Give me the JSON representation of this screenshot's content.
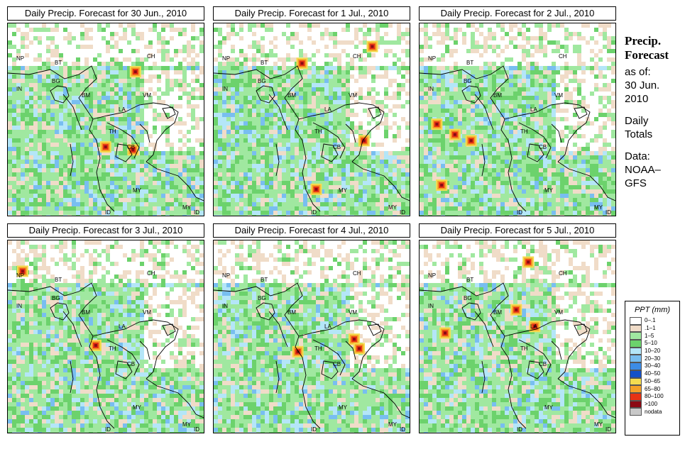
{
  "panels": [
    {
      "title": "Daily Precip. Forecast for  30 Jun., 2010"
    },
    {
      "title": "Daily Precip. Forecast for  1 Jul., 2010"
    },
    {
      "title": "Daily Precip. Forecast for  2 Jul., 2010"
    },
    {
      "title": "Daily Precip. Forecast for  3 Jul., 2010"
    },
    {
      "title": "Daily Precip. Forecast for  4 Jul., 2010"
    },
    {
      "title": "Daily Precip. Forecast for  5 Jul., 2010"
    }
  ],
  "country_labels": [
    "NP",
    "BT",
    "BG",
    "IN",
    "CH",
    "BM",
    "VM",
    "LA",
    "TH",
    "CB",
    "MY",
    "ID"
  ],
  "side": {
    "title1": "Precip.",
    "title2": "Forecast",
    "asof": "as of:",
    "date1": "30 Jun.",
    "date2": "2010",
    "daily1": "Daily",
    "daily2": "Totals",
    "data1": "Data:",
    "data2": "NOAA–",
    "data3": "GFS"
  },
  "legend": {
    "title": "PPT (mm)",
    "items": [
      {
        "label": "0–.1",
        "color": "#ffffff"
      },
      {
        "label": ".1–1",
        "color": "#f0dcc8"
      },
      {
        "label": "1–5",
        "color": "#a0e8a0"
      },
      {
        "label": "5–10",
        "color": "#6cd26c"
      },
      {
        "label": "10–20",
        "color": "#b4e6f8"
      },
      {
        "label": "20–30",
        "color": "#78bef0"
      },
      {
        "label": "30–40",
        "color": "#3c8ce6"
      },
      {
        "label": "40–50",
        "color": "#1450c8"
      },
      {
        "label": "50–65",
        "color": "#f5dc50"
      },
      {
        "label": "65–80",
        "color": "#f5a028"
      },
      {
        "label": "80–100",
        "color": "#e63214"
      },
      {
        "label": ">100",
        "color": "#8c0a14"
      },
      {
        "label": "nodata",
        "color": "#c8c8c8"
      }
    ]
  }
}
